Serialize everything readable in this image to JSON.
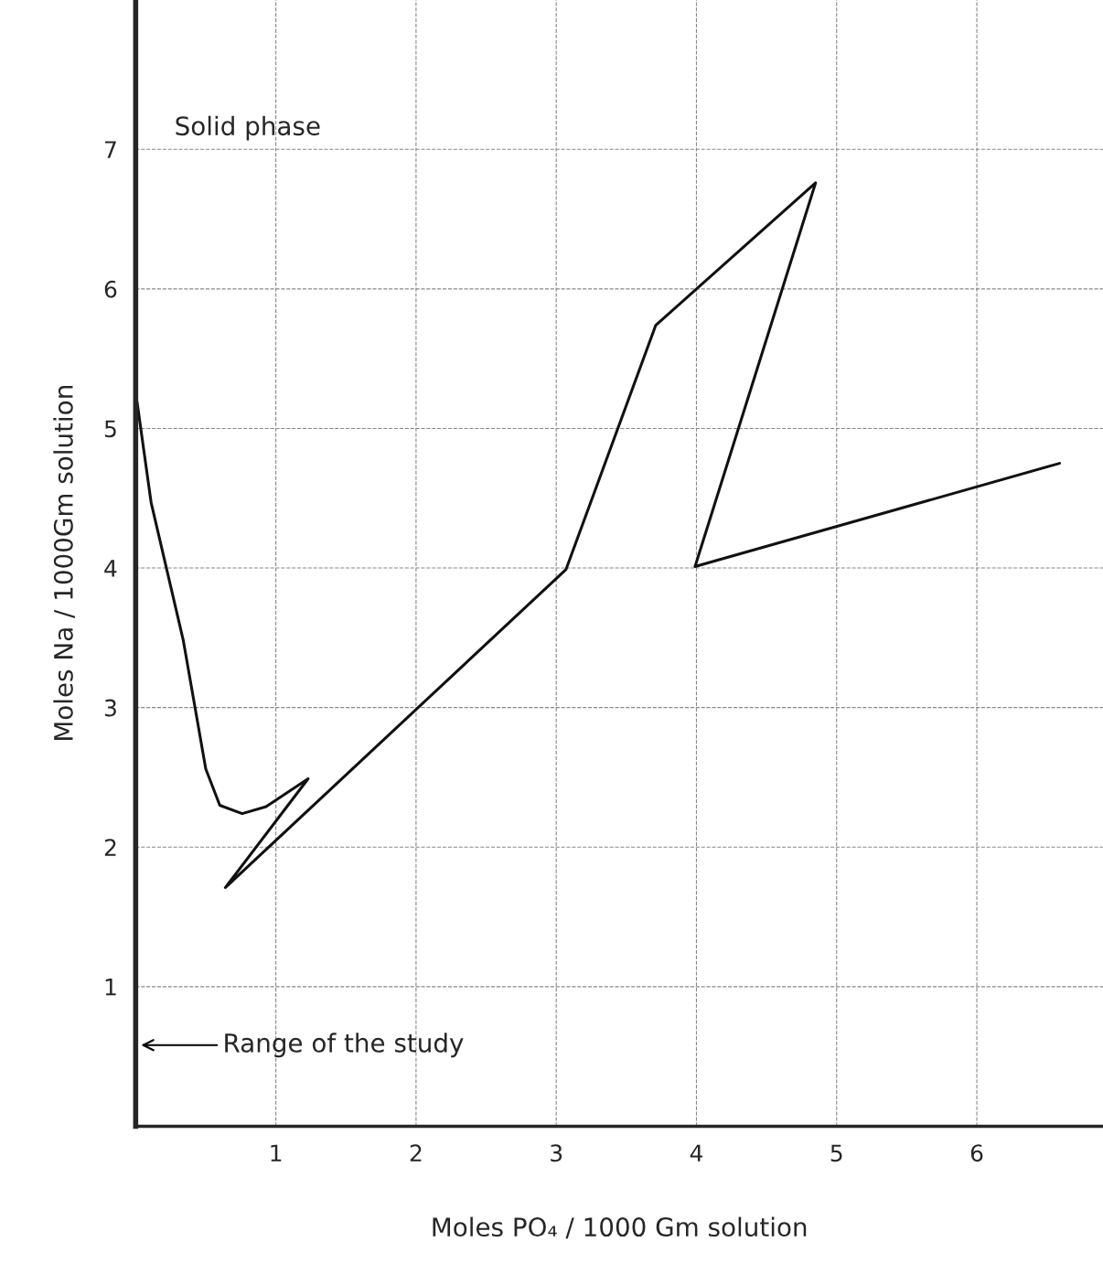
{
  "chart_data": {
    "type": "line",
    "xlabel": "Moles PO₄ / 1000 Gm solution",
    "ylabel": "Moles Na / 1000Gm solution",
    "xlim": [
      0,
      6.9
    ],
    "ylim": [
      0,
      8.07
    ],
    "xticks": [
      1,
      2,
      3,
      4,
      5,
      6
    ],
    "yticks": [
      1,
      2,
      3,
      4,
      5,
      6,
      7
    ],
    "grid": true,
    "series": [
      {
        "color": "#111111",
        "x": [
          0.01,
          0.11,
          0.34,
          0.5,
          0.6,
          0.76,
          0.93,
          1.23,
          0.64,
          3.07,
          3.71,
          4.85,
          3.99,
          6.59
        ],
        "values": [
          5.19,
          4.47,
          3.48,
          2.56,
          2.3,
          2.24,
          2.29,
          2.49,
          1.71,
          3.99,
          5.74,
          6.76,
          4.01,
          4.75
        ]
      }
    ],
    "annotations": [
      "Solid phase",
      "Range of the study"
    ]
  }
}
